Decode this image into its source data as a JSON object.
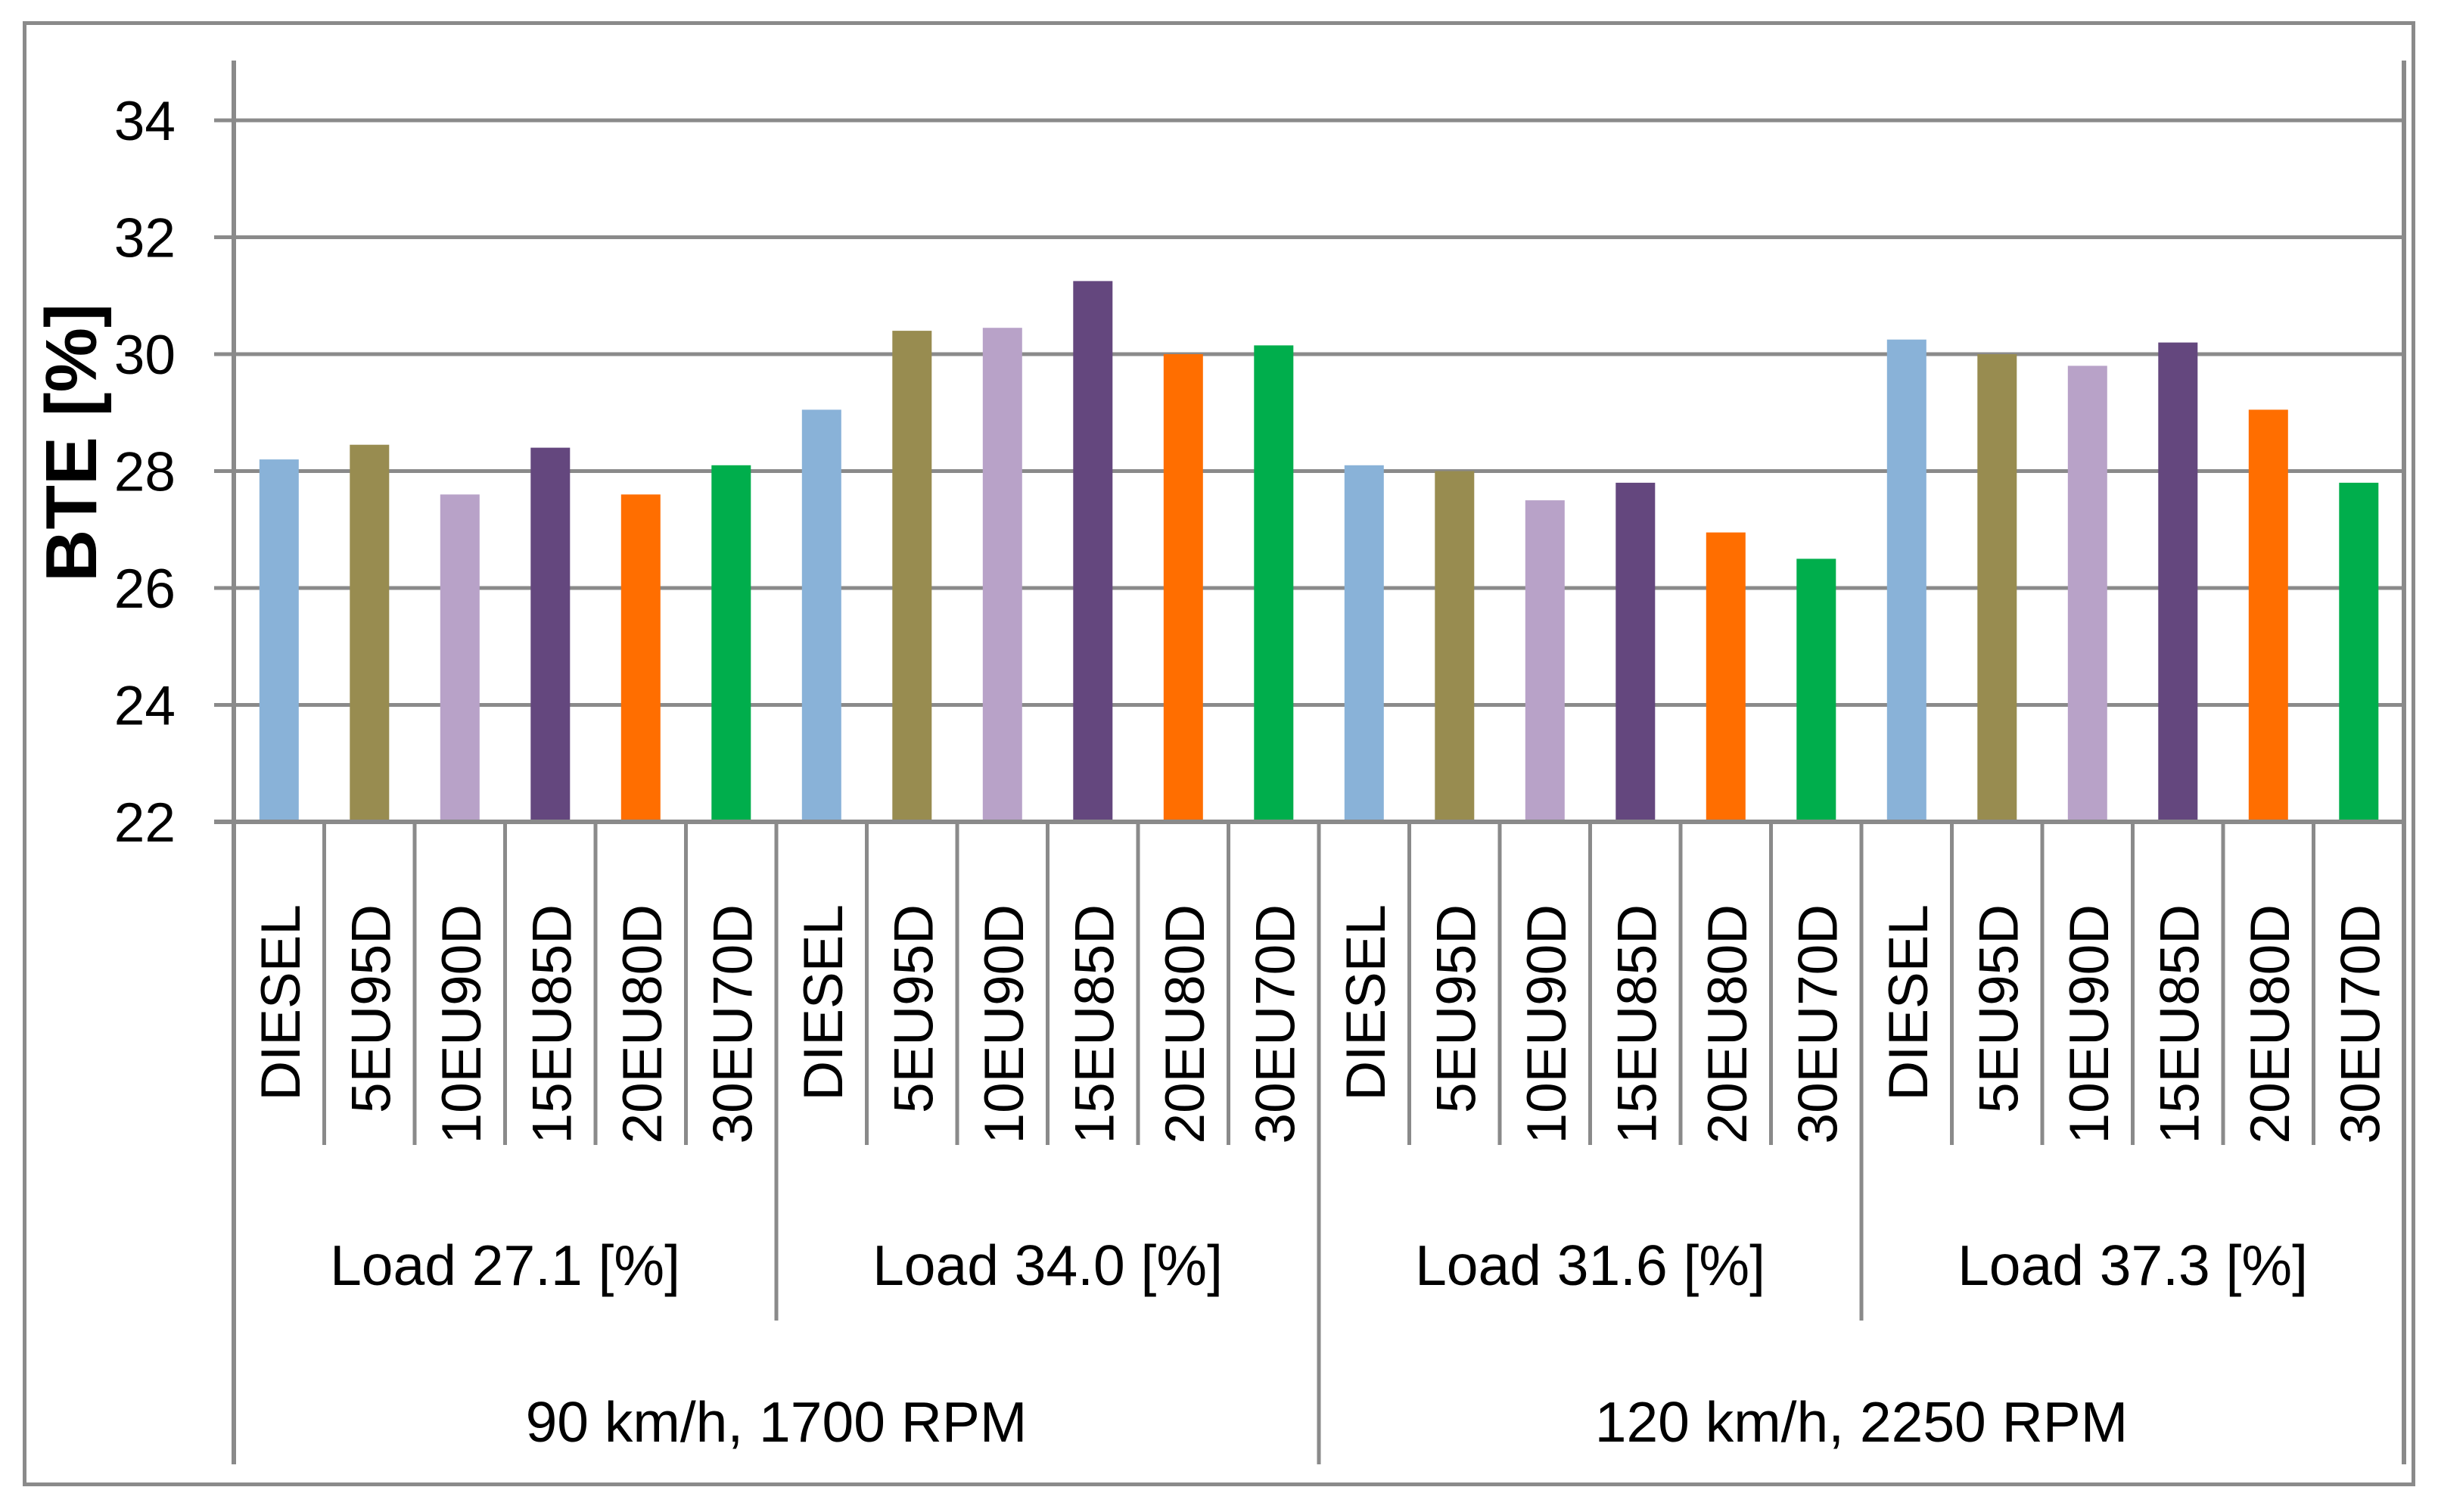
{
  "chart_data": {
    "type": "bar",
    "title": "",
    "ylabel": "BTE [%]",
    "xlabel": "",
    "ylim": [
      22,
      35
    ],
    "yticks": [
      34,
      32,
      30,
      28,
      26,
      24,
      22
    ],
    "grid": true,
    "legend_position": "none",
    "categories": [
      "DIESEL",
      "5EU95D",
      "10EU90D",
      "15EU85D",
      "20EU80D",
      "30EU70D"
    ],
    "groups": [
      {
        "load_label": "Load 27.1 [%]",
        "values": [
          28.2,
          28.45,
          27.6,
          28.4,
          27.6,
          28.1
        ]
      },
      {
        "load_label": "Load 34.0 [%]",
        "values": [
          29.05,
          30.4,
          30.45,
          31.25,
          30.0,
          30.15
        ]
      },
      {
        "load_label": "Load 31.6 [%]",
        "values": [
          28.1,
          28.0,
          27.5,
          27.8,
          26.95,
          26.5
        ]
      },
      {
        "load_label": "Load 37.3 [%]",
        "values": [
          30.25,
          30.0,
          29.8,
          30.2,
          29.05,
          27.8
        ]
      }
    ],
    "speed_labels": [
      "90 km/h, 1700 RPM",
      "120 km/h, 2250 RPM"
    ],
    "bar_colors": [
      "#89B2D8",
      "#988C50",
      "#B8A2C8",
      "#64477E",
      "#FF6E00",
      "#00AE4C"
    ],
    "grid_color": "#8A8A8A",
    "text_color": "#000000"
  }
}
